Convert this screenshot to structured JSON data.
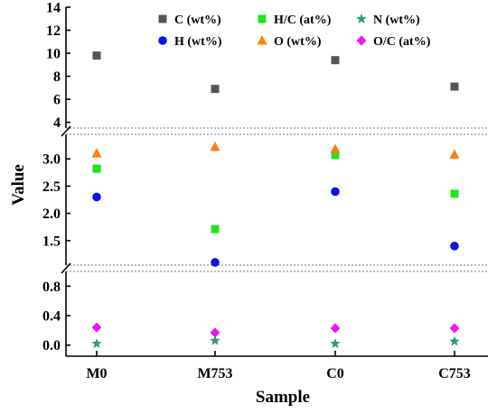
{
  "chart_data": {
    "type": "scatter",
    "xlabel": "Sample",
    "ylabel": "Value",
    "categories": [
      "M0",
      "M753",
      "C0",
      "C753"
    ],
    "y_segments": [
      {
        "range": [
          3.5,
          14
        ],
        "ticks": [
          4,
          6,
          8,
          10,
          12,
          14
        ],
        "tick_labels": [
          "4",
          "6",
          "8",
          "10",
          "12",
          "14"
        ]
      },
      {
        "range": [
          1.05,
          3.45
        ],
        "ticks": [
          1.5,
          2.0,
          2.5,
          3.0
        ],
        "tick_labels": [
          "1.5",
          "2.0",
          "2.5",
          "3.0"
        ]
      },
      {
        "range": [
          -0.15,
          1.0
        ],
        "ticks": [
          0.0,
          0.4,
          0.8
        ],
        "tick_labels": [
          "0.0",
          "0.4",
          "0.8"
        ]
      }
    ],
    "axis_break": true,
    "grid": false,
    "legend_position": "top, 3 columns",
    "series": [
      {
        "name": "C (wt%)",
        "marker": "square",
        "color": "#555555",
        "values": [
          9.8,
          6.9,
          9.4,
          7.1
        ]
      },
      {
        "name": "H (wt%)",
        "marker": "circle",
        "color": "#0a14e6",
        "values": [
          2.3,
          1.1,
          2.4,
          1.4
        ]
      },
      {
        "name": "H/C (at%)",
        "marker": "square",
        "color": "#1fe51f",
        "values": [
          2.82,
          1.71,
          3.07,
          2.36
        ]
      },
      {
        "name": "O (wt%)",
        "marker": "triangle",
        "color": "#ff7f0e",
        "values": [
          3.1,
          3.22,
          3.18,
          3.08
        ]
      },
      {
        "name": "N (wt%)",
        "marker": "star",
        "color": "#2e9e6e",
        "values": [
          0.02,
          0.06,
          0.02,
          0.05
        ]
      },
      {
        "name": "O/C (at%)",
        "marker": "diamond",
        "color": "#f014f0",
        "values": [
          0.24,
          0.17,
          0.23,
          0.23
        ]
      }
    ]
  }
}
